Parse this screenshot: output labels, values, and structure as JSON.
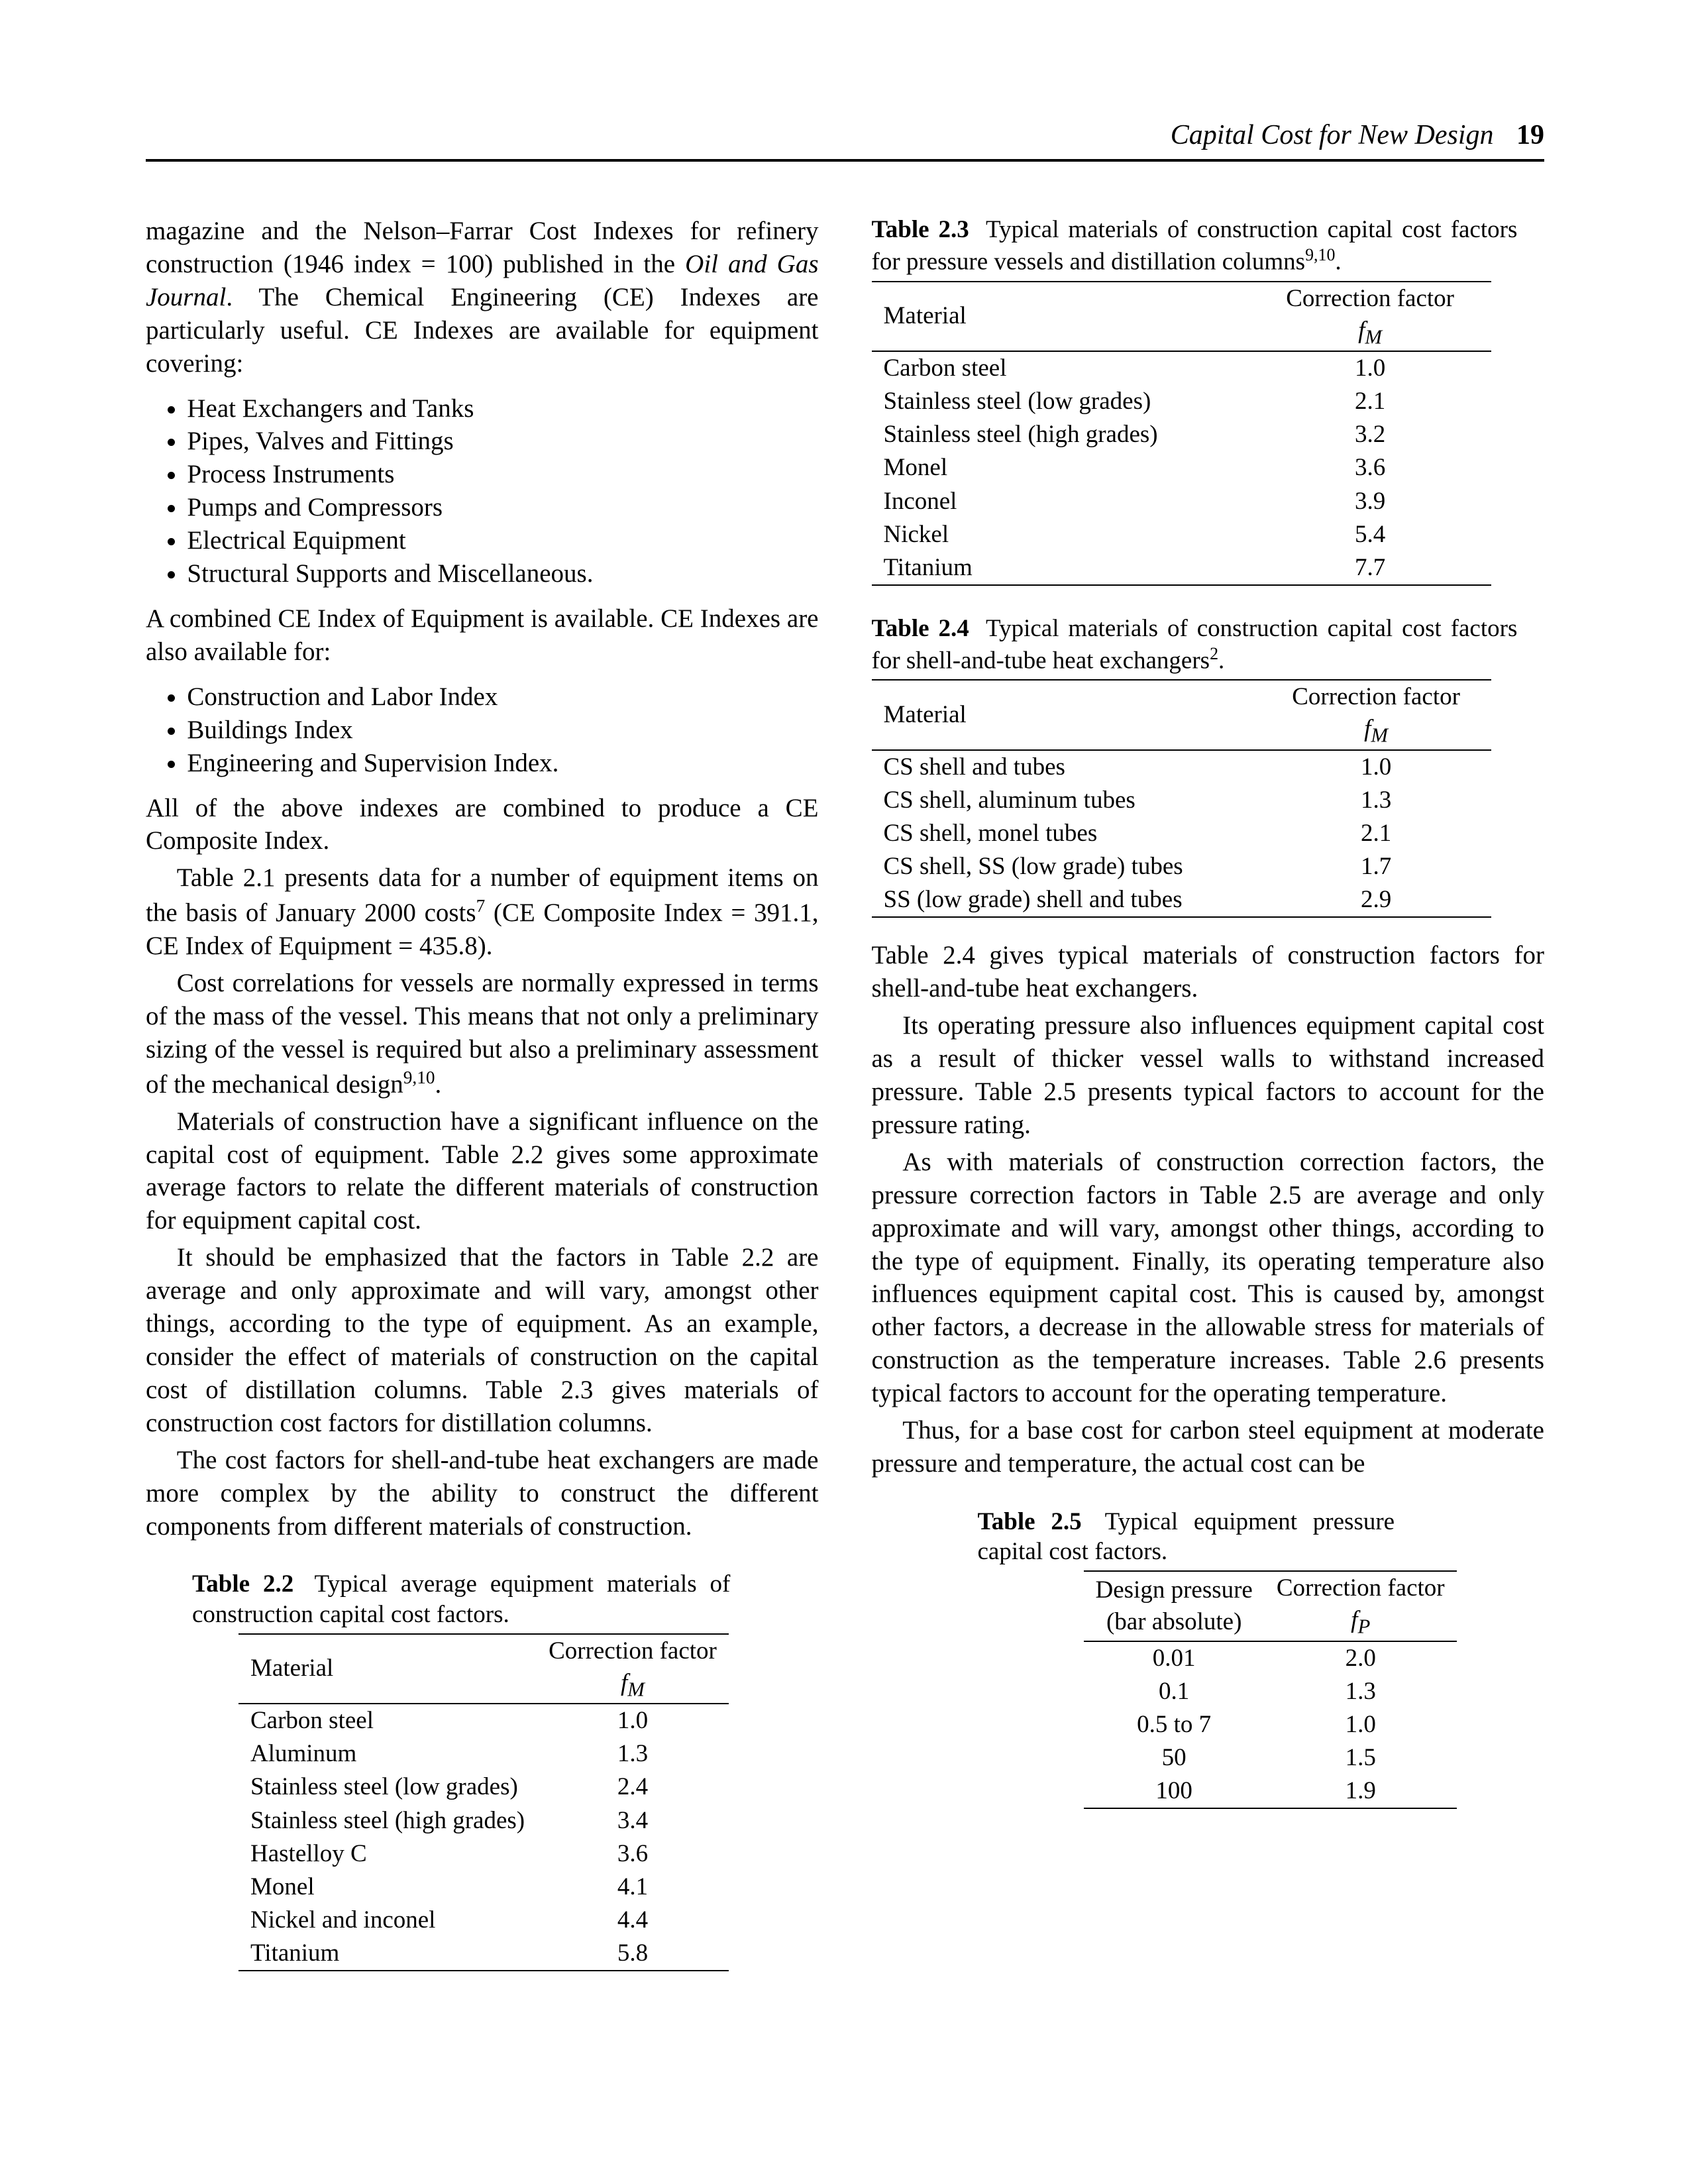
{
  "header": {
    "title": "Capital Cost for New Design",
    "page": "19"
  },
  "left": {
    "p1": "magazine and the Nelson–Farrar Cost Indexes for refinery construction (1946 index = 100) published in the Oil and Gas Journal. The Chemical Engineering (CE) Indexes are particularly useful. CE Indexes are available for equipment covering:",
    "list1": [
      "Heat Exchangers and Tanks",
      "Pipes, Valves and Fittings",
      "Process Instruments",
      "Pumps and Compressors",
      "Electrical Equipment",
      "Structural Supports and Miscellaneous."
    ],
    "p2": "A combined CE Index of Equipment is available. CE Indexes are also available for:",
    "list2": [
      "Construction and Labor Index",
      "Buildings Index",
      "Engineering and Supervision Index."
    ],
    "p3": "All of the above indexes are combined to produce a CE Composite Index.",
    "p4a": "Table 2.1 presents data for a number of equipment items on the basis of January 2000 costs",
    "p4b": " (CE Composite Index = 391.1, CE Index of Equipment = 435.8).",
    "p5": "Cost correlations for vessels are normally expressed in terms of the mass of the vessel. This means that not only a preliminary sizing of the vessel is required but also a preliminary assessment of the mechanical design",
    "p6": "Materials of construction have a significant influence on the capital cost of equipment. Table 2.2 gives some approximate average factors to relate the different materials of construction for equipment capital cost.",
    "p7": "It should be emphasized that the factors in Table 2.2 are average and only approximate and will vary, amongst other things, according to the type of equipment. As an example, consider the effect of materials of construction on the capital cost of distillation columns. Table 2.3 gives materials of construction cost factors for distillation columns.",
    "p8": "The cost factors for shell-and-tube heat exchangers are made more complex by the ability to construct the different components from different materials of construction."
  },
  "right": {
    "p1": "Table 2.4 gives typical materials of construction factors for shell-and-tube heat exchangers.",
    "p2": "Its operating pressure also influences equipment capital cost as a result of thicker vessel walls to withstand increased pressure. Table 2.5 presents typical factors to account for the pressure rating.",
    "p3": "As with materials of construction correction factors, the pressure correction factors in Table 2.5 are average and only approximate and will vary, amongst other things, according to the type of equipment. Finally, its operating temperature also influences equipment capital cost. This is caused by, amongst other factors, a decrease in the allowable stress for materials of construction as the temperature increases. Table 2.6 presents typical factors to account for the operating temperature.",
    "p4": "Thus, for a base cost for carbon steel equipment at moderate pressure and temperature, the actual cost can be"
  },
  "tables": {
    "t22": {
      "label": "Table 2.2",
      "caption": "Typical average equipment materials of construction capital cost factors.",
      "head_left": "Material",
      "head_right_1": "Correction factor",
      "head_right_2": "f",
      "rows": [
        [
          "Carbon steel",
          "1.0"
        ],
        [
          "Aluminum",
          "1.3"
        ],
        [
          "Stainless steel (low grades)",
          "2.4"
        ],
        [
          "Stainless steel (high grades)",
          "3.4"
        ],
        [
          "Hastelloy C",
          "3.6"
        ],
        [
          "Monel",
          "4.1"
        ],
        [
          "Nickel and inconel",
          "4.4"
        ],
        [
          "Titanium",
          "5.8"
        ]
      ]
    },
    "t23": {
      "label": "Table 2.3",
      "caption_a": "Typical materials of construction capital cost factors for pressure vessels and distillation columns",
      "head_left": "Material",
      "head_right_1": "Correction factor",
      "head_right_2": "f",
      "rows": [
        [
          "Carbon steel",
          "1.0"
        ],
        [
          "Stainless steel (low grades)",
          "2.1"
        ],
        [
          "Stainless steel (high grades)",
          "3.2"
        ],
        [
          "Monel",
          "3.6"
        ],
        [
          "Inconel",
          "3.9"
        ],
        [
          "Nickel",
          "5.4"
        ],
        [
          "Titanium",
          "7.7"
        ]
      ]
    },
    "t24": {
      "label": "Table 2.4",
      "caption_a": "Typical materials of construction capital cost factors for shell-and-tube heat exchangers",
      "head_left": "Material",
      "head_right_1": "Correction factor",
      "head_right_2": "f",
      "rows": [
        [
          "CS shell and tubes",
          "1.0"
        ],
        [
          "CS shell, aluminum tubes",
          "1.3"
        ],
        [
          "CS shell, monel tubes",
          "2.1"
        ],
        [
          "CS shell, SS (low grade) tubes",
          "1.7"
        ],
        [
          "SS (low grade) shell and tubes",
          "2.9"
        ]
      ]
    },
    "t25": {
      "label": "Table 2.5",
      "caption": "Typical equipment pressure capital cost factors.",
      "head_left_1": "Design pressure",
      "head_left_2": "(bar absolute)",
      "head_right_1": "Correction factor",
      "head_right_2": "f",
      "rows": [
        [
          "0.01",
          "2.0"
        ],
        [
          "0.1",
          "1.3"
        ],
        [
          "0.5 to 7",
          "1.0"
        ],
        [
          "50",
          "1.5"
        ],
        [
          "100",
          "1.9"
        ]
      ]
    }
  }
}
